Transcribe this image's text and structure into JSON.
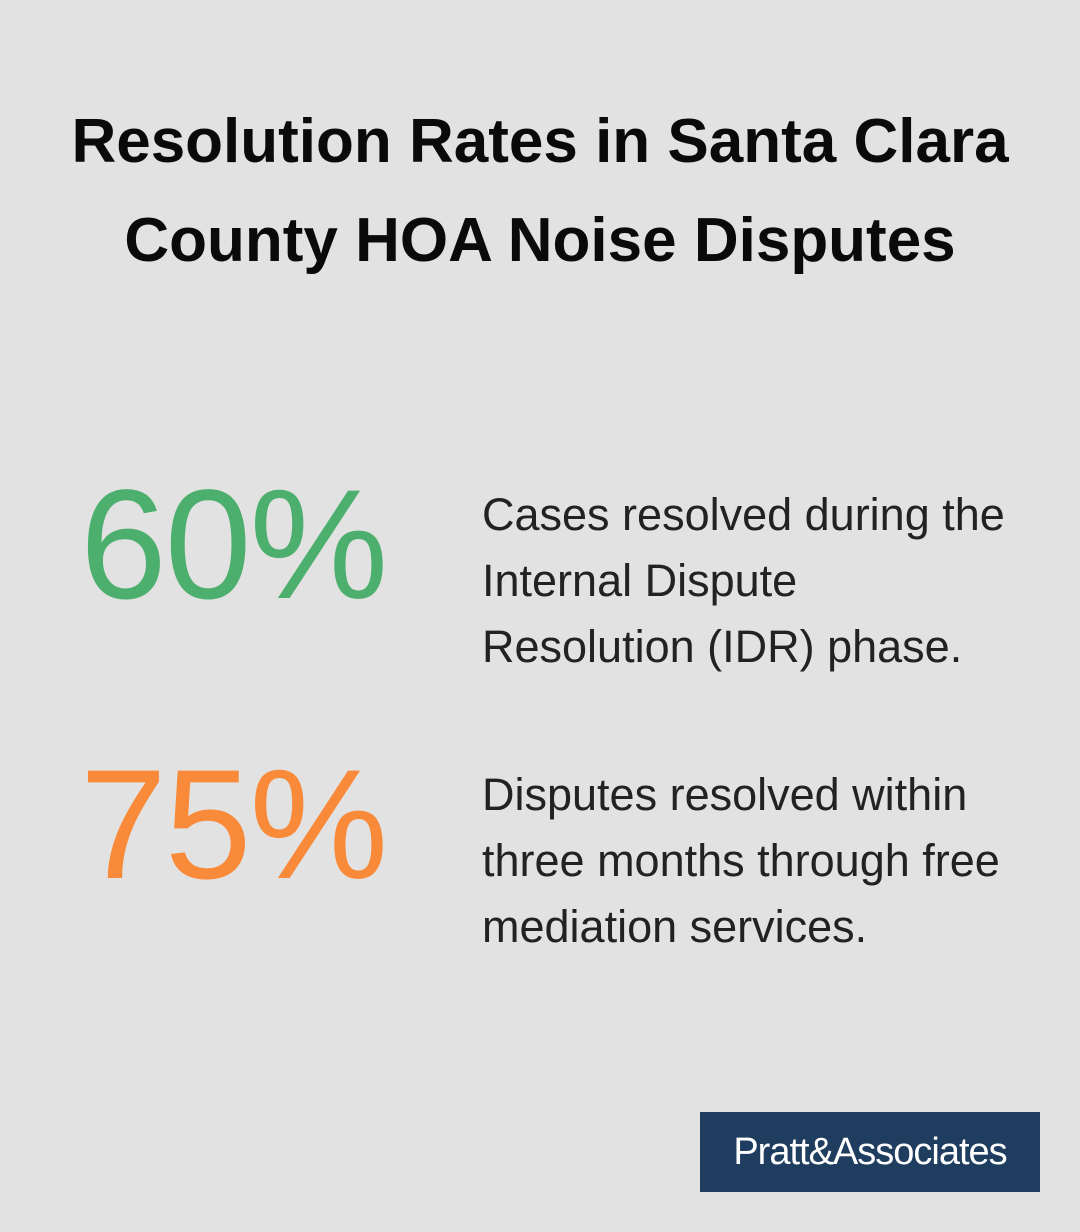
{
  "header": {
    "title": "Resolution Rates in Santa Clara County HOA Noise Disputes"
  },
  "stats": [
    {
      "value": "60%",
      "description": "Cases resolved during the Internal Dispute Resolution (IDR) phase."
    },
    {
      "value": "75%",
      "description": "Disputes resolved within three months through free mediation services."
    }
  ],
  "footer": {
    "logo": "Pratt&Associates"
  }
}
